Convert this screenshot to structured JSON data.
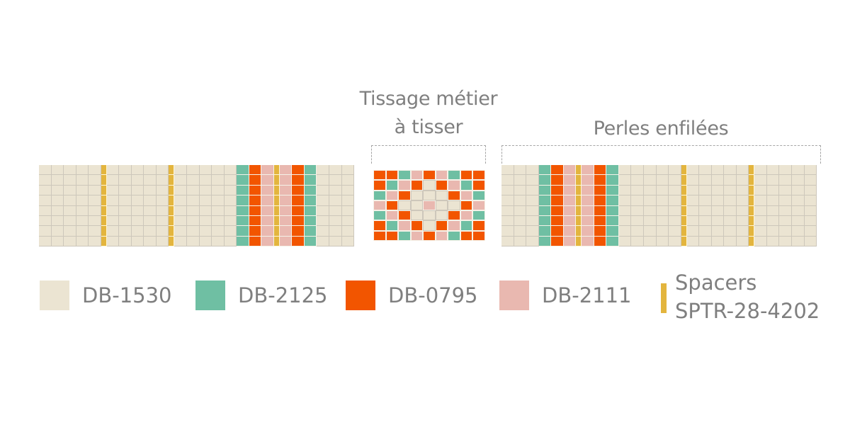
{
  "titles": {
    "loom": [
      "Tissage métier",
      "à tisser"
    ],
    "strung": "Perles enfilées"
  },
  "colors": {
    "b": "#ebe4d2",
    "g": "#6fbfa3",
    "o": "#f25500",
    "p": "#e9b8b0",
    "s": "#e3b53e"
  },
  "left_strip": {
    "rows": 8,
    "columns": [
      "b",
      "b",
      "b",
      "b",
      "b",
      "s",
      "b",
      "b",
      "b",
      "b",
      "b",
      "s",
      "b",
      "b",
      "b",
      "b",
      "b",
      "g",
      "o",
      "p",
      "s",
      "p",
      "o",
      "g",
      "b",
      "b",
      "b"
    ]
  },
  "loom_pattern": {
    "grid": [
      [
        "o",
        "o",
        "g",
        "p",
        "o",
        "p",
        "g",
        "o",
        "o"
      ],
      [
        "o",
        "g",
        "p",
        "o",
        "b",
        "o",
        "p",
        "g",
        "o"
      ],
      [
        "g",
        "p",
        "o",
        "b",
        "b",
        "b",
        "o",
        "p",
        "g"
      ],
      [
        "p",
        "o",
        "b",
        "b",
        "p",
        "b",
        "b",
        "o",
        "p"
      ],
      [
        "g",
        "p",
        "o",
        "b",
        "b",
        "b",
        "o",
        "p",
        "g"
      ],
      [
        "o",
        "g",
        "p",
        "o",
        "b",
        "o",
        "p",
        "g",
        "o"
      ],
      [
        "o",
        "o",
        "g",
        "p",
        "o",
        "p",
        "g",
        "o",
        "o"
      ]
    ]
  },
  "right_strip": {
    "rows": 8,
    "columns": [
      "b",
      "b",
      "b",
      "g",
      "o",
      "p",
      "s",
      "p",
      "o",
      "g",
      "b",
      "b",
      "b",
      "b",
      "b",
      "s",
      "b",
      "b",
      "b",
      "b",
      "b",
      "s",
      "b",
      "b",
      "b",
      "b",
      "b"
    ]
  },
  "legend": [
    {
      "key": "b",
      "label": "DB-1530",
      "color": "#ebe4d2"
    },
    {
      "key": "g",
      "label": "DB-2125",
      "color": "#6fbfa3"
    },
    {
      "key": "o",
      "label": "DB-0795",
      "color": "#f25500"
    },
    {
      "key": "p",
      "label": "DB-2111",
      "color": "#e9b8b0"
    },
    {
      "key": "s",
      "label_line1": "Spacers",
      "label_line2": "SPTR-28-4202",
      "color": "#e3b53e"
    }
  ]
}
